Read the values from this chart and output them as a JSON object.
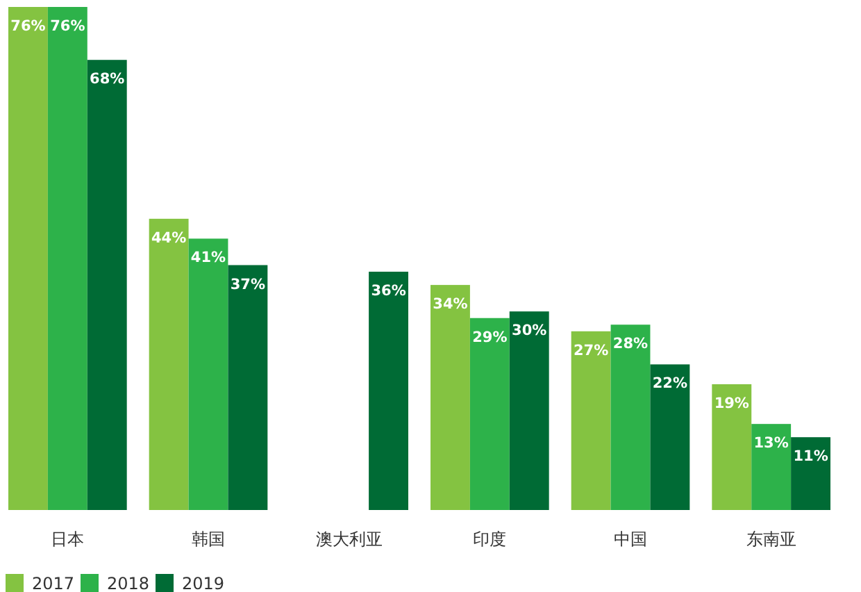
{
  "chart_data": {
    "type": "bar",
    "categories": [
      "日本",
      "韩国",
      "澳大利亚",
      "印度",
      "中国",
      "东南亚"
    ],
    "series": [
      {
        "name": "2017",
        "color": "#84c341",
        "values": [
          76,
          44,
          null,
          34,
          27,
          19
        ],
        "value_labels": [
          "76%",
          "44%",
          null,
          "34%",
          "27%",
          "19%"
        ]
      },
      {
        "name": "2018",
        "color": "#2db24a",
        "values": [
          76,
          41,
          null,
          29,
          28,
          13
        ],
        "value_labels": [
          "76%",
          "41%",
          null,
          "29%",
          "28%",
          "13%"
        ]
      },
      {
        "name": "2019",
        "color": "#006b35",
        "values": [
          68,
          37,
          36,
          30,
          22,
          11
        ],
        "value_labels": [
          "68%",
          "37%",
          "36%",
          "30%",
          "22%",
          "11%"
        ]
      }
    ],
    "legend": "bottom left"
  }
}
